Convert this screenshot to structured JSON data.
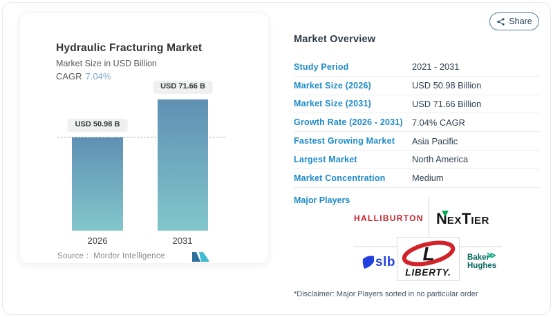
{
  "chart_card": {
    "title": "Hydraulic Fracturing Market",
    "subtitle": "Market Size in USD Billion",
    "cagr_label": "CAGR",
    "cagr_value": "7.04%",
    "source_prefix": "Source :",
    "source_name": "Mordor Intelligence"
  },
  "chart_data": {
    "type": "bar",
    "categories": [
      "2026",
      "2031"
    ],
    "values": [
      50.98,
      71.66
    ],
    "bar_labels": [
      "USD 50.98 B",
      "USD 71.66 B"
    ],
    "unit": "USD Billion",
    "title": "Hydraulic Fracturing Market",
    "ylabel": "Market Size in USD Billion",
    "ylim": [
      0,
      71.66
    ],
    "cagr": "7.04%",
    "reference_line_value": 50.98,
    "grid": false,
    "legend": "none",
    "bar_gradient_top": "#5f90b4",
    "bar_gradient_bottom": "#82c6ca"
  },
  "share": {
    "label": "Share"
  },
  "overview": {
    "heading": "Market Overview",
    "rows": [
      {
        "label": "Study Period",
        "value": "2021 - 2031"
      },
      {
        "label": "Market Size (2026)",
        "value": "USD 50.98 Billion"
      },
      {
        "label": "Market Size (2031)",
        "value": "USD 71.66 Billion"
      },
      {
        "label": "Growth Rate (2026 - 2031)",
        "value": "7.04% CAGR"
      },
      {
        "label": "Fastest Growing Market",
        "value": "Asia Pacific"
      },
      {
        "label": "Largest Market",
        "value": "North America"
      },
      {
        "label": "Market Concentration",
        "value": "Medium"
      }
    ],
    "major_players_label": "Major Players",
    "disclaimer": "*Disclaimer: Major Players sorted in no particular order"
  },
  "logos": {
    "halliburton": "HALLIBURTON",
    "nextier_n": "N",
    "nextier_ex": "EX",
    "nextier_t": "T",
    "nextier_ier": "IER",
    "slb": "slb",
    "liberty_l": "L",
    "liberty_word": "LIBERTY.",
    "baker": "Baker",
    "hughes": "Hughes"
  },
  "colors": {
    "table_label_blue": "#1d8bc9",
    "cagr_accent_blue": "#7da6c9",
    "halliburton_red": "#c8242c",
    "nextier_green": "#00a650",
    "slb_blue": "#2440e3",
    "liberty_red": "#d2232a",
    "baker_hughes_teal": "#04645c",
    "baker_hughes_green": "#00aa7e",
    "share_border": "#55809a",
    "bar_top": "#5f90b4",
    "bar_bottom": "#82c6ca"
  }
}
